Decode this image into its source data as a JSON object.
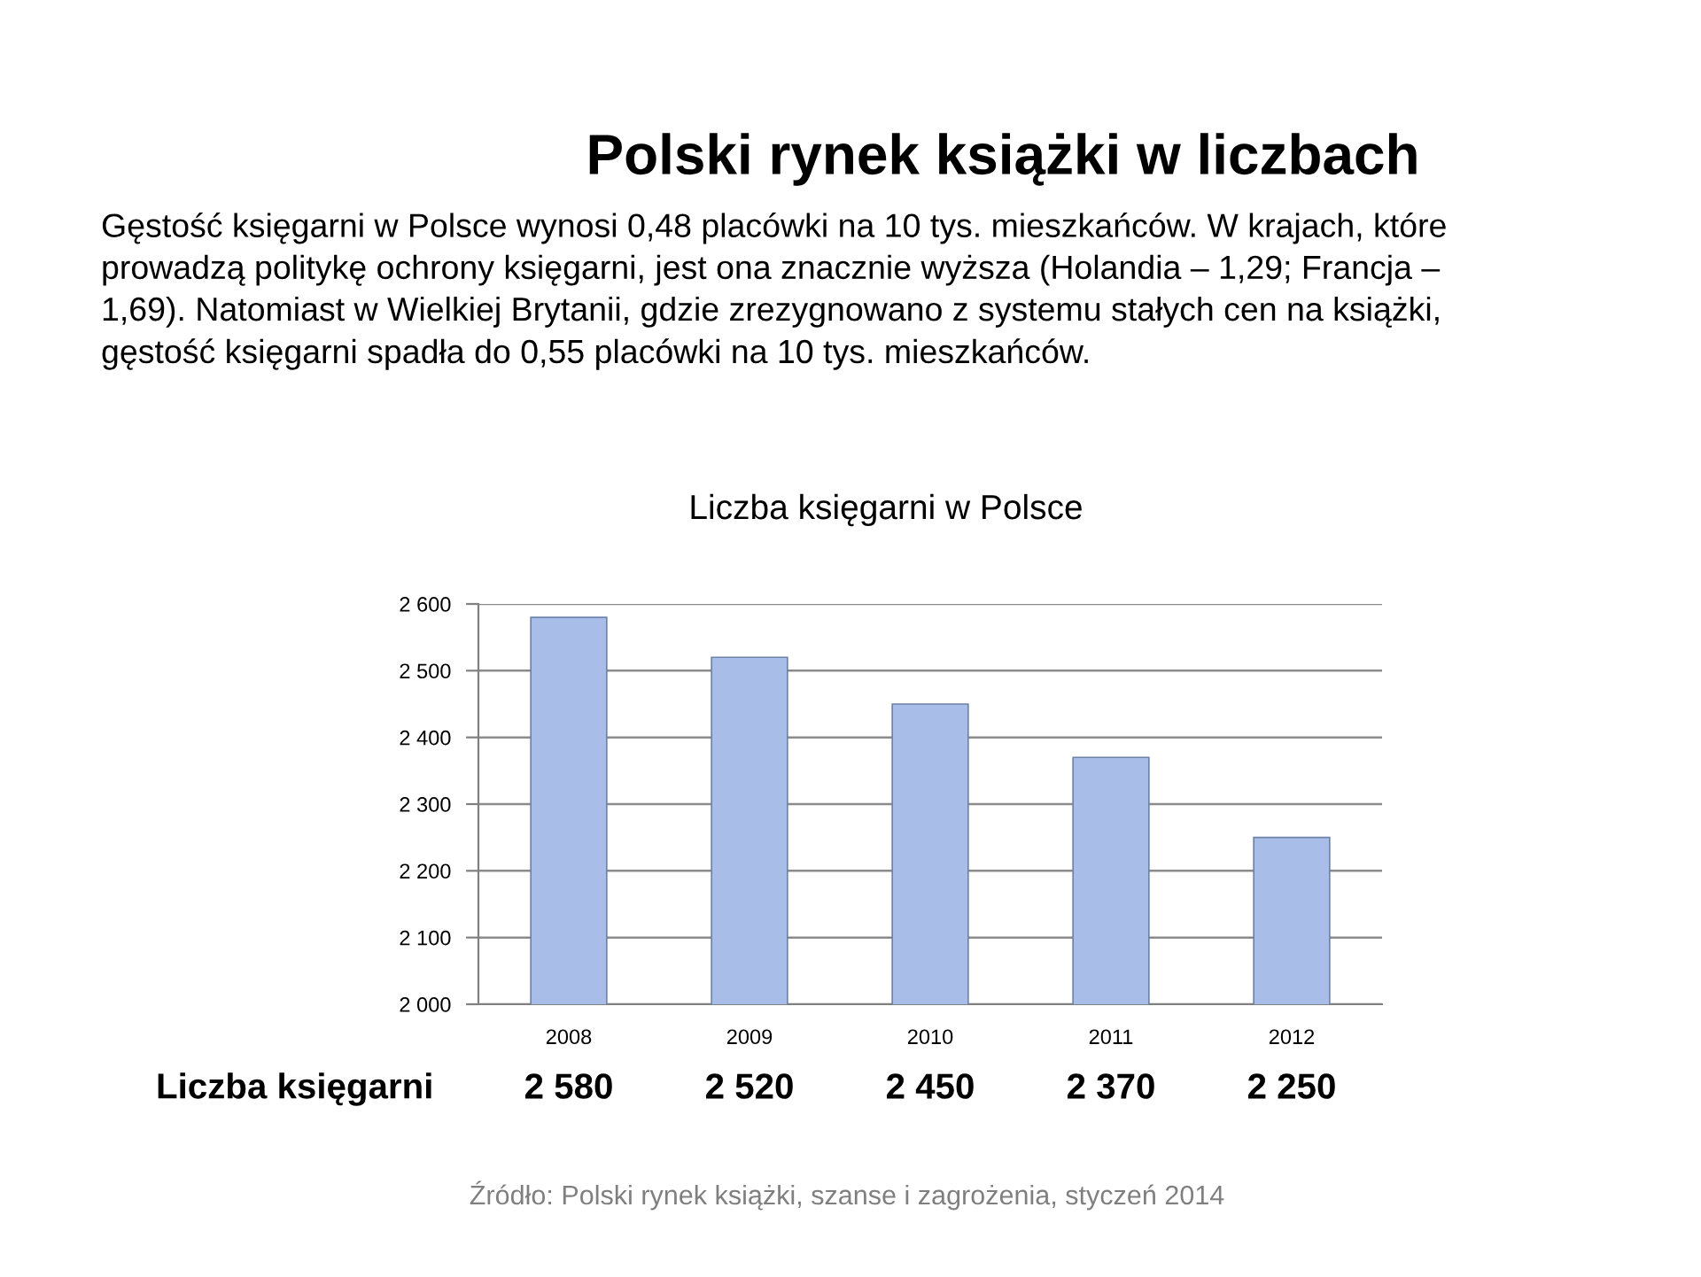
{
  "chart_data": {
    "type": "bar",
    "title": "Polski rynek książki w liczbach",
    "subtitle": "Gęstość księgarni w Polsce wynosi 0,48 placówki na 10 tys. mieszkańców. W krajach, które prowadzą politykę ochrony księgarni, jest ona znacznie wyższa (Holandia – 1,29; Francja – 1,69). Natomiast w Wielkiej Brytanii, gdzie zrezygnowano z systemu stałych cen na książki, gęstość księgarni spadła do 0,55 placówki na 10 tys. mieszkańców.",
    "annotations": [
      "Liczba księgarni w Polsce",
      "Źródło: Polski rynek książki, szanse i zagrożenia, styczeń 2014"
    ],
    "categories": [
      "2008",
      "2009",
      "2010",
      "2011",
      "2012"
    ],
    "series": [
      {
        "name": "Liczba księgarni",
        "color": "#a8bde8",
        "values": [
          2580,
          2520,
          2450,
          2370,
          2250
        ],
        "value_labels": [
          "2 580",
          "2 520",
          "2 450",
          "2 370",
          "2 250"
        ]
      }
    ],
    "ylim": [
      2000,
      2600
    ],
    "yticks": [
      {
        "value": 2000,
        "label": "2 000"
      },
      {
        "value": 2100,
        "label": "2 100"
      },
      {
        "value": 2200,
        "label": "2 200"
      },
      {
        "value": 2300,
        "label": "2 300"
      },
      {
        "value": 2400,
        "label": "2 400"
      },
      {
        "value": 2500,
        "label": "2 500"
      },
      {
        "value": 2600,
        "label": "2 600"
      }
    ],
    "grid": "y"
  }
}
